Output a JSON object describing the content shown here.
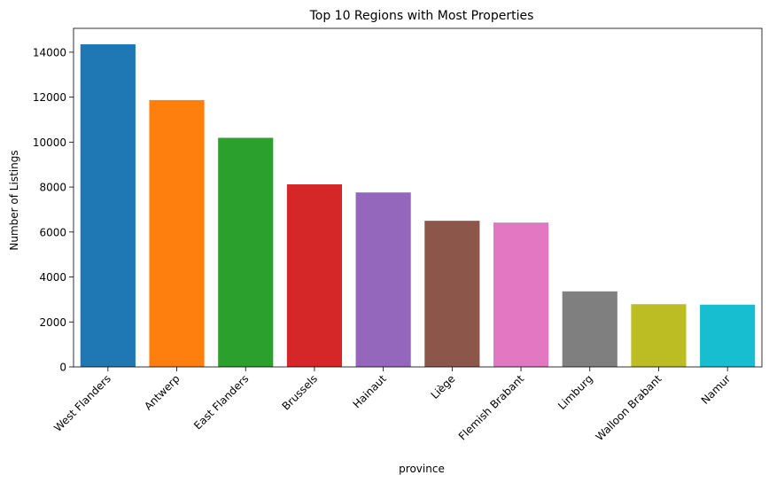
{
  "chart_data": {
    "type": "bar",
    "title": "Top 10 Regions with Most Properties",
    "xlabel": "province",
    "ylabel": "Number of Listings",
    "categories": [
      "West Flanders",
      "Antwerp",
      "East Flanders",
      "Brussels",
      "Hainaut",
      "Liège",
      "Flemish Brabant",
      "Limburg",
      "Walloon Brabant",
      "Namur"
    ],
    "values": [
      14350,
      11870,
      10190,
      8120,
      7760,
      6500,
      6420,
      3360,
      2790,
      2770
    ],
    "colors": [
      "#1f77b4",
      "#ff7f0e",
      "#2ca02c",
      "#d62728",
      "#9467bd",
      "#8c564b",
      "#e377c2",
      "#7f7f7f",
      "#bcbd22",
      "#17becf"
    ],
    "ylim": [
      0,
      15060
    ],
    "yticks": [
      0,
      2000,
      4000,
      6000,
      8000,
      10000,
      12000,
      14000
    ],
    "grid": false,
    "legend": "none"
  }
}
